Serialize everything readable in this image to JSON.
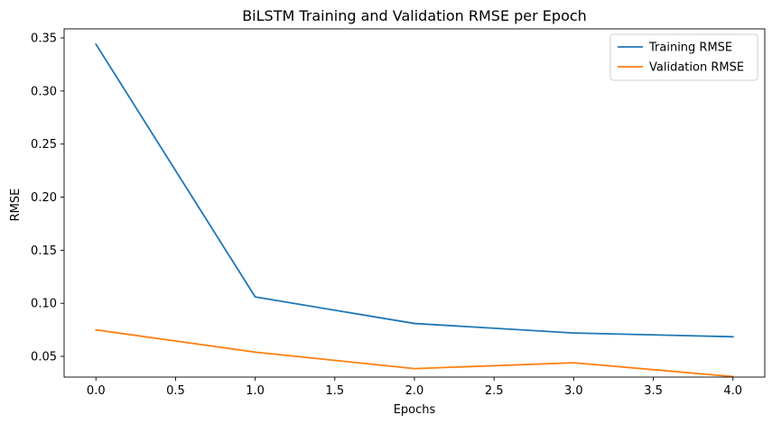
{
  "chart_data": {
    "type": "line",
    "title": "BiLSTM Training and Validation RMSE per Epoch",
    "xlabel": "Epochs",
    "ylabel": "RMSE",
    "x": [
      0,
      1,
      2,
      3,
      4
    ],
    "xlim": [
      -0.2,
      4.2
    ],
    "ylim": [
      0.0305,
      0.3585
    ],
    "xticks": [
      0.0,
      0.5,
      1.0,
      1.5,
      2.0,
      2.5,
      3.0,
      3.5,
      4.0
    ],
    "xtick_labels": [
      "0.0",
      "0.5",
      "1.0",
      "1.5",
      "2.0",
      "2.5",
      "3.0",
      "3.5",
      "4.0"
    ],
    "yticks": [
      0.05,
      0.1,
      0.15,
      0.2,
      0.25,
      0.3,
      0.35
    ],
    "ytick_labels": [
      "0.05",
      "0.10",
      "0.15",
      "0.20",
      "0.25",
      "0.30",
      "0.35"
    ],
    "grid": false,
    "legend_position": "top-right",
    "series": [
      {
        "name": "Training RMSE",
        "color": "#1f77b4",
        "values": [
          0.344,
          0.106,
          0.081,
          0.072,
          0.0685
        ]
      },
      {
        "name": "Validation RMSE",
        "color": "#ff7f0e",
        "values": [
          0.075,
          0.054,
          0.0385,
          0.044,
          0.031
        ]
      }
    ]
  }
}
